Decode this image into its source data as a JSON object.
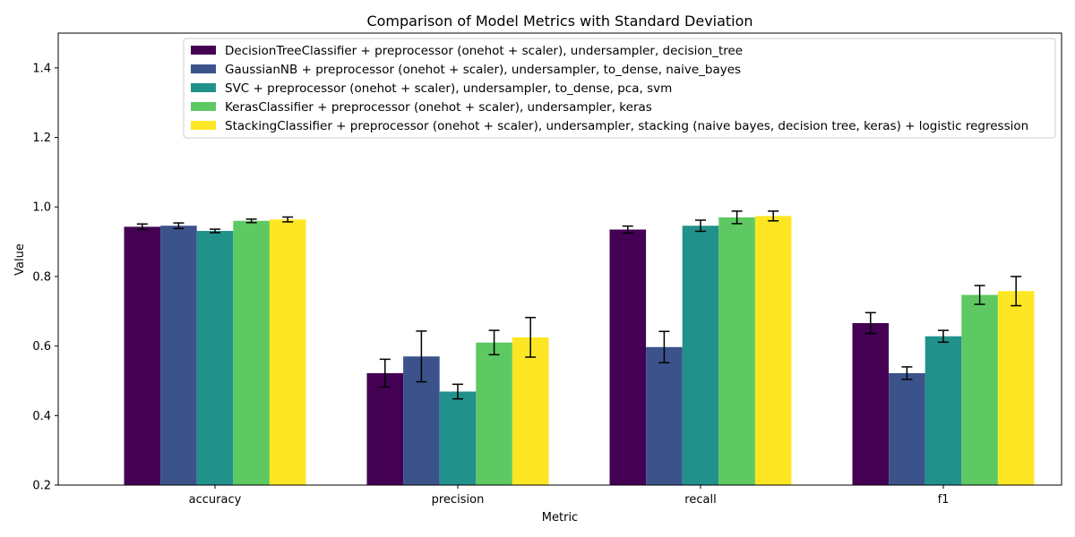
{
  "chart_data": {
    "type": "bar",
    "title": "Comparison of Model Metrics with Standard Deviation",
    "xlabel": "Metric",
    "ylabel": "Value",
    "ylim": [
      0.2,
      1.5
    ],
    "yticks": [
      "0.2",
      "0.4",
      "0.6",
      "0.8",
      "1.0",
      "1.2",
      "1.4"
    ],
    "categories": [
      "accuracy",
      "precision",
      "recall",
      "f1"
    ],
    "legend_position": "top-right",
    "grid": false,
    "series": [
      {
        "name": "DecisionTreeClassifier + preprocessor (onehot + scaler), undersampler, decision_tree",
        "color": "#440154",
        "values": [
          0.943,
          0.522,
          0.935,
          0.666
        ],
        "errors": [
          0.008,
          0.04,
          0.01,
          0.03
        ]
      },
      {
        "name": "GaussianNB + preprocessor (onehot + scaler), undersampler, to_dense, naive_bayes",
        "color": "#3b528b",
        "values": [
          0.946,
          0.57,
          0.597,
          0.522
        ],
        "errors": [
          0.008,
          0.073,
          0.045,
          0.018
        ]
      },
      {
        "name": "SVC + preprocessor (onehot + scaler), undersampler, to_dense, pca, svm",
        "color": "#21918c",
        "values": [
          0.931,
          0.469,
          0.946,
          0.628
        ],
        "errors": [
          0.005,
          0.021,
          0.016,
          0.017
        ]
      },
      {
        "name": "KerasClassifier + preprocessor (onehot + scaler), undersampler, keras",
        "color": "#5ec962",
        "values": [
          0.96,
          0.61,
          0.97,
          0.747
        ],
        "errors": [
          0.005,
          0.035,
          0.018,
          0.027
        ]
      },
      {
        "name": "StackingClassifier + preprocessor (onehot + scaler), undersampler, stacking (naive bayes, decision tree, keras) + logistic regression",
        "color": "#fde725",
        "values": [
          0.964,
          0.625,
          0.974,
          0.758
        ],
        "errors": [
          0.007,
          0.057,
          0.014,
          0.042
        ]
      }
    ]
  }
}
